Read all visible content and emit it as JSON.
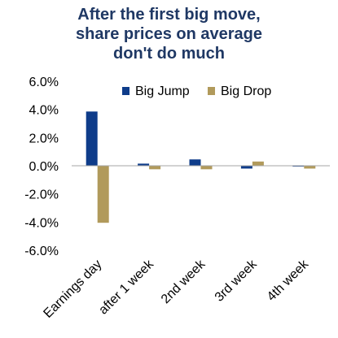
{
  "chart_data": {
    "type": "bar",
    "title_lines": [
      "After the first big move,",
      "share prices on average",
      "don't do much"
    ],
    "categories": [
      "Earnings day",
      "after 1 week",
      "2nd week",
      "3rd week",
      "4th week"
    ],
    "series": [
      {
        "name": "Big Jump",
        "values": [
          3.85,
          0.15,
          0.45,
          -0.2,
          -0.05
        ]
      },
      {
        "name": "Big Drop",
        "values": [
          -4.05,
          -0.25,
          -0.25,
          0.3,
          -0.2
        ]
      }
    ],
    "ylim": [
      -6,
      6
    ],
    "yticks": [
      -6,
      -4,
      -2,
      0,
      2,
      4,
      6
    ],
    "ytick_labels": [
      "-6.0%",
      "-4.0%",
      "-2.0%",
      "0.0%",
      "2.0%",
      "4.0%",
      "6.0%"
    ],
    "grid": false,
    "legend_position": "top-right",
    "colors": {
      "big_jump": "#0e3c8a",
      "big_drop": "#b19a5b",
      "title": "#1f3864",
      "axis": "#a6a6a6"
    }
  }
}
